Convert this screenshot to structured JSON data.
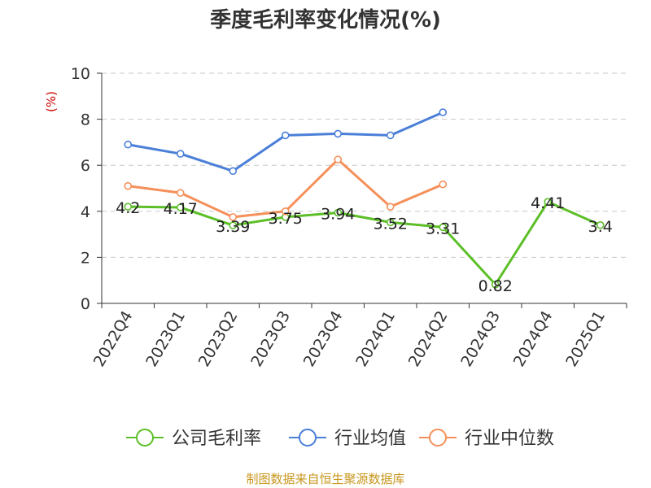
{
  "chart_data": {
    "type": "line",
    "title": "季度毛利率变化情况(%)",
    "ylabel": "(%)",
    "xlabel": "",
    "ylim": [
      0,
      10
    ],
    "yticks": [
      0,
      2,
      4,
      6,
      8,
      10
    ],
    "grid": true,
    "legend_position": "bottom",
    "categories": [
      "2022Q4",
      "2023Q1",
      "2023Q2",
      "2023Q3",
      "2023Q4",
      "2024Q1",
      "2024Q2",
      "2024Q3",
      "2024Q4",
      "2025Q1"
    ],
    "series": [
      {
        "name": "公司毛利率",
        "color": "#5cbf28",
        "values": [
          4.2,
          4.17,
          3.39,
          3.75,
          3.94,
          3.52,
          3.31,
          0.82,
          4.41,
          3.4
        ],
        "labels": [
          "4.2",
          "4.17",
          "3.39",
          "3.75",
          "3.94",
          "3.52",
          "3.31",
          "0.82",
          "4.41",
          "3.4"
        ]
      },
      {
        "name": "行业均值",
        "color": "#4a7fd8",
        "values": [
          6.9,
          6.5,
          5.75,
          7.3,
          7.37,
          7.3,
          8.3,
          null,
          null,
          null
        ]
      },
      {
        "name": "行业中位数",
        "color": "#f5905a",
        "values": [
          5.1,
          4.8,
          3.75,
          4.0,
          6.25,
          4.2,
          5.17,
          null,
          null,
          null
        ]
      }
    ]
  },
  "footer": "制图数据来自恒生聚源数据库"
}
